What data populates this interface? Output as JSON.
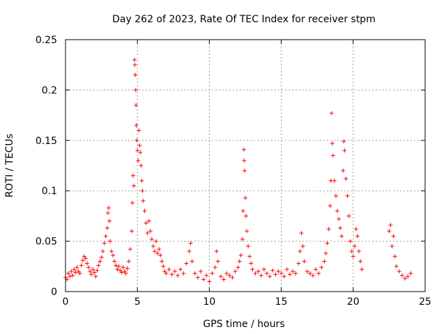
{
  "chart_data": {
    "type": "scatter",
    "title": "Day 262 of 2023, Rate Of TEC Index for receiver stpm",
    "xlabel": "GPS time / hours",
    "ylabel": "ROTI / TECUs",
    "xlim": [
      0,
      25
    ],
    "ylim": [
      0,
      0.25
    ],
    "x_ticks": [
      0,
      5,
      10,
      15,
      20,
      25
    ],
    "x_tick_labels": [
      "0",
      "5",
      "10",
      "15",
      "20",
      "25"
    ],
    "y_ticks": [
      0,
      0.05,
      0.1,
      0.15,
      0.2,
      0.25
    ],
    "y_tick_labels": [
      "0",
      "0.05",
      "0.1",
      "0.15",
      "0.2",
      "0.25"
    ],
    "grid": true,
    "marker": "+",
    "color": "#ff0000",
    "series": [
      {
        "name": "ROTI",
        "points": [
          [
            0.0,
            0.014
          ],
          [
            0.1,
            0.012
          ],
          [
            0.2,
            0.018
          ],
          [
            0.3,
            0.015
          ],
          [
            0.4,
            0.02
          ],
          [
            0.5,
            0.016
          ],
          [
            0.6,
            0.022
          ],
          [
            0.7,
            0.019
          ],
          [
            0.8,
            0.024
          ],
          [
            0.9,
            0.02
          ],
          [
            1.0,
            0.018
          ],
          [
            1.1,
            0.026
          ],
          [
            1.2,
            0.031
          ],
          [
            1.3,
            0.035
          ],
          [
            1.4,
            0.033
          ],
          [
            1.5,
            0.028
          ],
          [
            1.6,
            0.024
          ],
          [
            1.7,
            0.02
          ],
          [
            1.8,
            0.017
          ],
          [
            1.9,
            0.022
          ],
          [
            2.0,
            0.019
          ],
          [
            2.1,
            0.015
          ],
          [
            2.2,
            0.021
          ],
          [
            2.3,
            0.026
          ],
          [
            2.4,
            0.03
          ],
          [
            2.5,
            0.034
          ],
          [
            2.6,
            0.04
          ],
          [
            2.7,
            0.048
          ],
          [
            2.8,
            0.055
          ],
          [
            2.9,
            0.063
          ],
          [
            2.95,
            0.078
          ],
          [
            3.0,
            0.083
          ],
          [
            3.05,
            0.07
          ],
          [
            3.1,
            0.05
          ],
          [
            3.2,
            0.04
          ],
          [
            3.3,
            0.036
          ],
          [
            3.4,
            0.03
          ],
          [
            3.5,
            0.026
          ],
          [
            3.6,
            0.022
          ],
          [
            3.7,
            0.025
          ],
          [
            3.8,
            0.021
          ],
          [
            3.9,
            0.019
          ],
          [
            4.0,
            0.024
          ],
          [
            4.1,
            0.02
          ],
          [
            4.2,
            0.018
          ],
          [
            4.3,
            0.023
          ],
          [
            4.4,
            0.03
          ],
          [
            4.5,
            0.042
          ],
          [
            4.6,
            0.06
          ],
          [
            4.65,
            0.088
          ],
          [
            4.7,
            0.115
          ],
          [
            4.75,
            0.105
          ],
          [
            4.8,
            0.23
          ],
          [
            4.82,
            0.225
          ],
          [
            4.85,
            0.215
          ],
          [
            4.88,
            0.2
          ],
          [
            4.9,
            0.185
          ],
          [
            4.92,
            0.165
          ],
          [
            4.95,
            0.15
          ],
          [
            5.0,
            0.14
          ],
          [
            5.05,
            0.13
          ],
          [
            5.1,
            0.16
          ],
          [
            5.15,
            0.145
          ],
          [
            5.2,
            0.138
          ],
          [
            5.25,
            0.125
          ],
          [
            5.3,
            0.11
          ],
          [
            5.35,
            0.1
          ],
          [
            5.4,
            0.09
          ],
          [
            5.5,
            0.08
          ],
          [
            5.6,
            0.068
          ],
          [
            5.7,
            0.058
          ],
          [
            5.8,
            0.07
          ],
          [
            5.9,
            0.06
          ],
          [
            6.0,
            0.052
          ],
          [
            6.1,
            0.045
          ],
          [
            6.2,
            0.04
          ],
          [
            6.3,
            0.05
          ],
          [
            6.4,
            0.038
          ],
          [
            6.5,
            0.042
          ],
          [
            6.6,
            0.036
          ],
          [
            6.7,
            0.03
          ],
          [
            6.8,
            0.025
          ],
          [
            6.9,
            0.02
          ],
          [
            7.0,
            0.018
          ],
          [
            7.2,
            0.022
          ],
          [
            7.4,
            0.017
          ],
          [
            7.6,
            0.02
          ],
          [
            7.8,
            0.016
          ],
          [
            8.0,
            0.022
          ],
          [
            8.2,
            0.018
          ],
          [
            8.4,
            0.028
          ],
          [
            8.6,
            0.04
          ],
          [
            8.7,
            0.048
          ],
          [
            8.8,
            0.03
          ],
          [
            9.0,
            0.018
          ],
          [
            9.2,
            0.014
          ],
          [
            9.4,
            0.02
          ],
          [
            9.6,
            0.012
          ],
          [
            9.8,
            0.016
          ],
          [
            10.0,
            0.01
          ],
          [
            10.2,
            0.018
          ],
          [
            10.4,
            0.024
          ],
          [
            10.5,
            0.04
          ],
          [
            10.6,
            0.03
          ],
          [
            10.8,
            0.015
          ],
          [
            11.0,
            0.012
          ],
          [
            11.2,
            0.018
          ],
          [
            11.4,
            0.016
          ],
          [
            11.6,
            0.014
          ],
          [
            11.8,
            0.02
          ],
          [
            12.0,
            0.024
          ],
          [
            12.1,
            0.03
          ],
          [
            12.2,
            0.036
          ],
          [
            12.3,
            0.052
          ],
          [
            12.35,
            0.08
          ],
          [
            12.4,
            0.141
          ],
          [
            12.42,
            0.13
          ],
          [
            12.45,
            0.12
          ],
          [
            12.5,
            0.093
          ],
          [
            12.55,
            0.075
          ],
          [
            12.6,
            0.06
          ],
          [
            12.7,
            0.045
          ],
          [
            12.8,
            0.035
          ],
          [
            12.9,
            0.028
          ],
          [
            13.0,
            0.022
          ],
          [
            13.2,
            0.018
          ],
          [
            13.4,
            0.02
          ],
          [
            13.6,
            0.016
          ],
          [
            13.8,
            0.022
          ],
          [
            14.0,
            0.018
          ],
          [
            14.2,
            0.015
          ],
          [
            14.4,
            0.021
          ],
          [
            14.6,
            0.017
          ],
          [
            14.8,
            0.02
          ],
          [
            15.0,
            0.018
          ],
          [
            15.2,
            0.015
          ],
          [
            15.4,
            0.022
          ],
          [
            15.6,
            0.017
          ],
          [
            15.8,
            0.02
          ],
          [
            16.0,
            0.018
          ],
          [
            16.2,
            0.028
          ],
          [
            16.3,
            0.04
          ],
          [
            16.4,
            0.058
          ],
          [
            16.5,
            0.045
          ],
          [
            16.6,
            0.03
          ],
          [
            16.8,
            0.02
          ],
          [
            17.0,
            0.018
          ],
          [
            17.2,
            0.016
          ],
          [
            17.4,
            0.022
          ],
          [
            17.6,
            0.018
          ],
          [
            17.8,
            0.024
          ],
          [
            18.0,
            0.03
          ],
          [
            18.1,
            0.038
          ],
          [
            18.2,
            0.048
          ],
          [
            18.3,
            0.062
          ],
          [
            18.4,
            0.085
          ],
          [
            18.45,
            0.11
          ],
          [
            18.5,
            0.177
          ],
          [
            18.55,
            0.147
          ],
          [
            18.6,
            0.135
          ],
          [
            18.7,
            0.11
          ],
          [
            18.8,
            0.095
          ],
          [
            18.9,
            0.08
          ],
          [
            19.0,
            0.072
          ],
          [
            19.1,
            0.063
          ],
          [
            19.2,
            0.055
          ],
          [
            19.3,
            0.12
          ],
          [
            19.35,
            0.149
          ],
          [
            19.4,
            0.14
          ],
          [
            19.5,
            0.112
          ],
          [
            19.6,
            0.095
          ],
          [
            19.7,
            0.075
          ],
          [
            19.8,
            0.05
          ],
          [
            19.9,
            0.04
          ],
          [
            20.0,
            0.035
          ],
          [
            20.1,
            0.045
          ],
          [
            20.2,
            0.062
          ],
          [
            20.3,
            0.055
          ],
          [
            20.4,
            0.04
          ],
          [
            20.5,
            0.03
          ],
          [
            20.6,
            0.022
          ],
          [
            22.5,
            0.06
          ],
          [
            22.6,
            0.066
          ],
          [
            22.7,
            0.045
          ],
          [
            22.8,
            0.055
          ],
          [
            22.9,
            0.035
          ],
          [
            23.0,
            0.025
          ],
          [
            23.2,
            0.02
          ],
          [
            23.4,
            0.016
          ],
          [
            23.6,
            0.013
          ],
          [
            23.8,
            0.015
          ],
          [
            24.0,
            0.018
          ]
        ]
      }
    ]
  }
}
